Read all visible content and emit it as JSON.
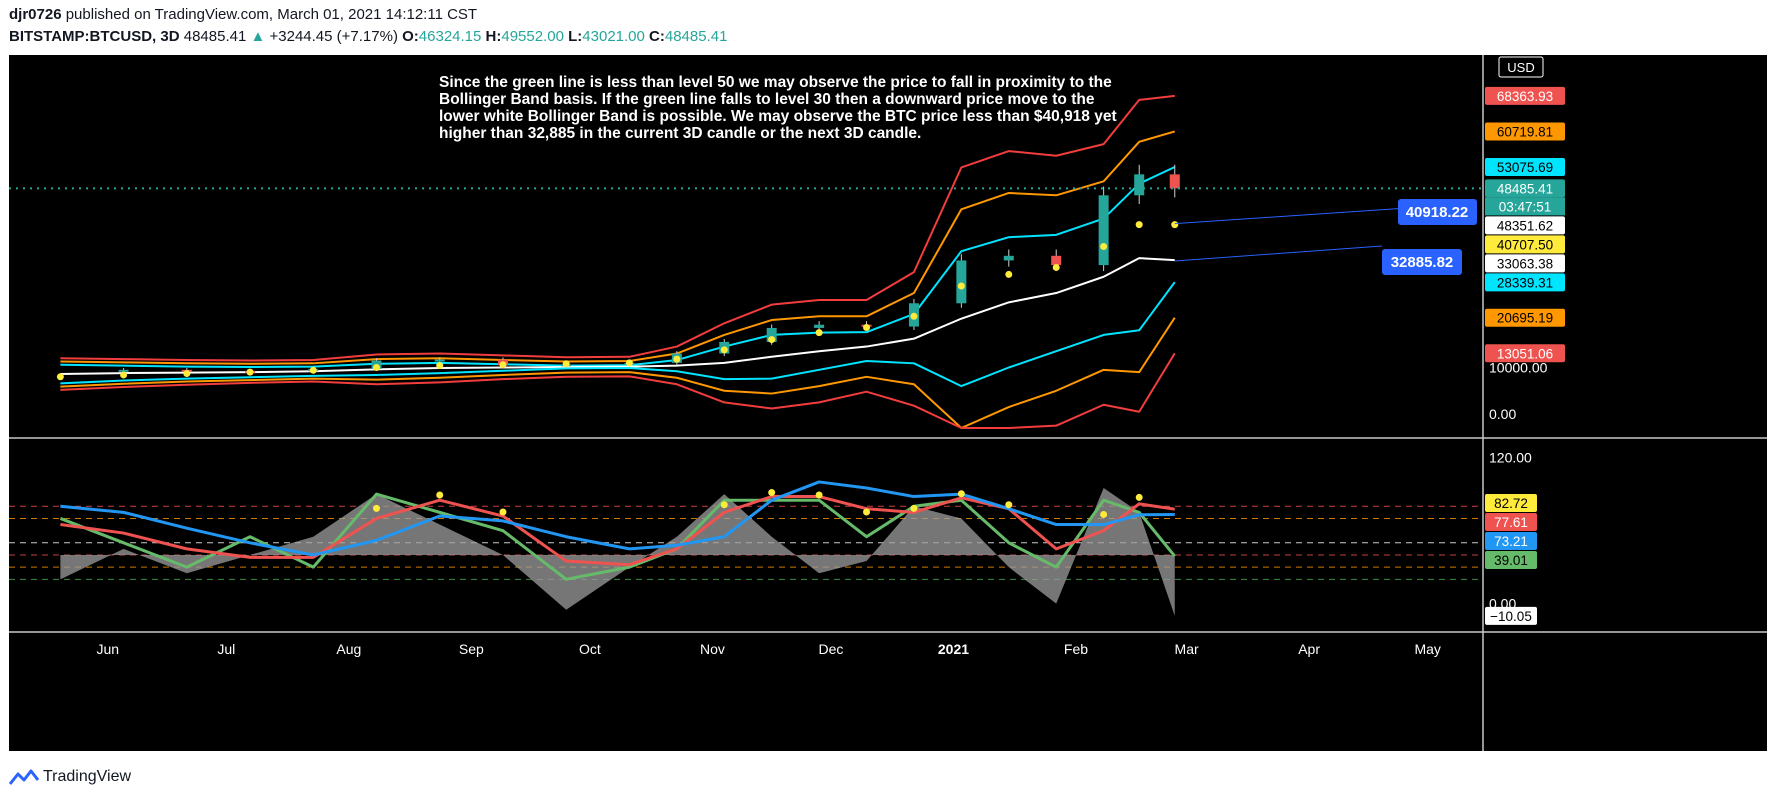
{
  "header": {
    "author": "djr0726",
    "published_text": " published on TradingView.com, March 01, 2021 14:12:11 CST",
    "symbol": "BITSTAMP:BTCUSD, 3D",
    "last": "48485.41",
    "change_arrow": "▲",
    "change": "+3244.45 (+7.17%)",
    "o_label": "O:",
    "o_val": "46324.15",
    "h_label": "H:",
    "h_val": "49552.00",
    "l_label": "L:",
    "l_val": "43021.00",
    "c_label": "C:",
    "c_val": "48485.41"
  },
  "annotation": [
    "Since the green line is less than level 50 we may observe the price to fall in proximity to the",
    "Bollinger Band basis. If the green line falls to level 30 then a downward price move to the",
    "lower white Bollinger Band is possible. We may observe the BTC price less than $40,918 yet",
    "higher than 32,885 in the current 3D candle or the next 3D candle."
  ],
  "callouts": [
    {
      "label": "40918.22",
      "color": "#2962ff"
    },
    {
      "label": "32885.82",
      "color": "#2962ff"
    }
  ],
  "footer": {
    "brand": "TradingView",
    "icon": "tradingview-logo-icon"
  },
  "colors": {
    "background": "#000000",
    "up": "#26a69a",
    "down": "#ef5350",
    "bb_outer": "#f23d3d",
    "bb_mid": "#ff9800",
    "bb_inner": "#00e5ff",
    "bb_basis": "#ffffff",
    "dots": "#ffeb3b",
    "osc_green": "#66bb6a",
    "osc_red": "#ef5350",
    "osc_blue": "#2196f3",
    "osc_area": "#9e9e9e"
  },
  "chart_data": [
    {
      "type": "candlestick",
      "currency_label": "USD",
      "x_ticks": [
        "Jun",
        "Jul",
        "Aug",
        "Sep",
        "Oct",
        "Nov",
        "Dec",
        "2021",
        "Feb",
        "Mar",
        "Apr",
        "May"
      ],
      "y_ticks": [
        "10000.00",
        "0.00"
      ],
      "ylim": [
        -3000,
        75000
      ],
      "price_line": 48485.41,
      "price_scale_labels": [
        {
          "value": 68363.93,
          "text": "68363.93",
          "color": "#ef5350",
          "text_color": "#ffffff"
        },
        {
          "value": 60719.81,
          "text": "60719.81",
          "color": "#ff9800",
          "text_color": "#000000"
        },
        {
          "value": 53075.69,
          "text": "53075.69",
          "color": "#00e5ff",
          "text_color": "#000000"
        },
        {
          "value": 48485.41,
          "text": "48485.41",
          "color": "#26a69a",
          "text_color": "#ffffff"
        },
        {
          "value": 48351.62,
          "text": "48351.62",
          "color": "#ffffff",
          "text_color": "#000000"
        },
        {
          "value": 40707.5,
          "text": "40707.50",
          "color": "#ffeb3b",
          "text_color": "#000000"
        },
        {
          "value": 33063.38,
          "text": "33063.38",
          "color": "#ffffff",
          "text_color": "#000000"
        },
        {
          "value": 28339.31,
          "text": "28339.31",
          "color": "#00e5ff",
          "text_color": "#000000"
        },
        {
          "value": 20695.19,
          "text": "20695.19",
          "color": "#ff9800",
          "text_color": "#000000"
        },
        {
          "value": 13051.06,
          "text": "13051.06",
          "color": "#ef5350",
          "text_color": "#ffffff"
        }
      ],
      "countdown": "03:47:51",
      "dates": [
        "2020-05-20",
        "2020-06-05",
        "2020-06-21",
        "2020-07-07",
        "2020-07-23",
        "2020-08-08",
        "2020-08-24",
        "2020-09-09",
        "2020-09-25",
        "2020-10-11",
        "2020-10-23",
        "2020-11-04",
        "2020-11-16",
        "2020-11-28",
        "2020-12-10",
        "2020-12-22",
        "2021-01-03",
        "2021-01-15",
        "2021-01-27",
        "2021-02-08",
        "2021-02-17",
        "2021-02-26"
      ],
      "close": [
        9200,
        9500,
        9300,
        9200,
        9700,
        11500,
        11700,
        10500,
        10700,
        11000,
        13000,
        15500,
        18500,
        19200,
        18800,
        23800,
        33000,
        34000,
        32000,
        47000,
        51500,
        48485
      ],
      "bb_outer_upper": [
        12000,
        11800,
        11600,
        11500,
        11600,
        12800,
        13000,
        12600,
        12200,
        12300,
        14500,
        19500,
        23500,
        24500,
        24500,
        30500,
        53000,
        56500,
        55500,
        58000,
        67500,
        68364
      ],
      "bb_mid_upper": [
        11300,
        11100,
        10900,
        10800,
        10900,
        11800,
        12000,
        11600,
        11300,
        11400,
        13000,
        17000,
        20200,
        21000,
        21000,
        26000,
        44000,
        47500,
        47000,
        50000,
        58500,
        60720
      ],
      "bb_inner_upper": [
        10600,
        10400,
        10200,
        10100,
        10200,
        10800,
        11000,
        10700,
        10400,
        10500,
        11600,
        14500,
        17000,
        17500,
        17600,
        21500,
        35000,
        38000,
        38500,
        42000,
        49500,
        53076
      ],
      "bb_basis": [
        8600,
        8800,
        8900,
        9000,
        9200,
        9600,
        9900,
        10000,
        10100,
        10200,
        10400,
        11000,
        12300,
        13500,
        14500,
        16200,
        20500,
        24000,
        26000,
        29500,
        33500,
        33063
      ],
      "bb_inner_lower": [
        6600,
        7200,
        7600,
        7900,
        8200,
        8400,
        8800,
        9300,
        9800,
        9900,
        9200,
        7500,
        7600,
        9500,
        11400,
        10900,
        6000,
        10000,
        13500,
        17000,
        18000,
        28339
      ],
      "bb_mid_lower": [
        5900,
        6500,
        7000,
        7300,
        7600,
        7400,
        7800,
        8400,
        8900,
        9000,
        7800,
        5000,
        4400,
        6000,
        8000,
        6400,
        -3000,
        1500,
        5000,
        9500,
        9000,
        20695
      ],
      "bb_outer_lower": [
        5200,
        5800,
        6300,
        6700,
        7000,
        6400,
        6800,
        7500,
        8000,
        8100,
        6400,
        2500,
        1200,
        2500,
        4800,
        1800,
        -11000,
        -7000,
        -2500,
        2000,
        500,
        13051
      ],
      "dots": [
        8000,
        8400,
        8700,
        9000,
        9400,
        10000,
        10400,
        10600,
        10800,
        11000,
        11800,
        13800,
        16000,
        17500,
        18600,
        21000,
        27500,
        30000,
        31500,
        36000,
        40700,
        40708
      ],
      "callout_values": [
        40918.22,
        32885.82
      ]
    },
    {
      "type": "line",
      "y_ticks": [
        "120.00",
        "0.00"
      ],
      "ylim": [
        -20,
        132
      ],
      "levels": [
        80,
        70,
        50,
        40,
        30,
        20
      ],
      "price_scale_labels": [
        {
          "value": 82.72,
          "text": "82.72",
          "color": "#ffeb3b",
          "text_color": "#000000"
        },
        {
          "value": 77.61,
          "text": "77.61",
          "color": "#ef5350",
          "text_color": "#ffffff"
        },
        {
          "value": 73.21,
          "text": "73.21",
          "color": "#2196f3",
          "text_color": "#ffffff"
        },
        {
          "value": 39.01,
          "text": "39.01",
          "color": "#66bb6a",
          "text_color": "#000000"
        },
        {
          "value": -10.05,
          "text": "−10.05",
          "color": "#ffffff",
          "text_color": "#000000"
        }
      ],
      "series": [
        {
          "key": "green",
          "color": "#66bb6a",
          "values": [
            70,
            50,
            30,
            55,
            30,
            90,
            75,
            60,
            20,
            30,
            45,
            85,
            85,
            85,
            55,
            80,
            85,
            50,
            30,
            85,
            75,
            39
          ]
        },
        {
          "key": "red",
          "color": "#ef5350",
          "values": [
            65,
            58,
            45,
            38,
            38,
            70,
            85,
            72,
            35,
            32,
            45,
            75,
            88,
            88,
            78,
            75,
            87,
            78,
            45,
            60,
            82,
            77.61
          ]
        },
        {
          "key": "blue",
          "color": "#2196f3",
          "values": [
            80,
            75,
            62,
            50,
            40,
            52,
            72,
            68,
            55,
            45,
            48,
            55,
            85,
            100,
            95,
            88,
            90,
            78,
            65,
            65,
            73,
            73.21
          ]
        },
        {
          "key": "gray_area",
          "color": "#9e9e9e",
          "values": [
            20,
            45,
            25,
            40,
            55,
            90,
            65,
            40,
            -5,
            30,
            55,
            90,
            55,
            25,
            35,
            80,
            70,
            30,
            0,
            95,
            75,
            -10.05
          ]
        }
      ],
      "dots": [
        null,
        null,
        null,
        null,
        null,
        75,
        86,
        72,
        null,
        null,
        null,
        78,
        88,
        86,
        72,
        75,
        87,
        78,
        null,
        70,
        84,
        null
      ]
    }
  ]
}
